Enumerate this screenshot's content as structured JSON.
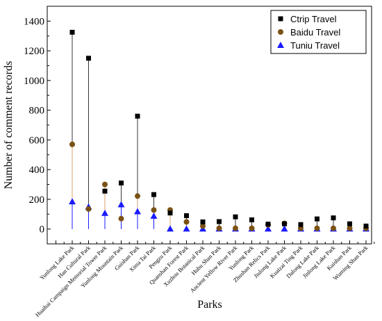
{
  "chart_data": {
    "type": "scatter",
    "xlabel": "Parks",
    "ylabel": "Number of comment records",
    "ylim": [
      -100,
      1500
    ],
    "yticks": [
      0,
      200,
      400,
      600,
      800,
      1000,
      1200,
      1400
    ],
    "grid": false,
    "legend_position": "top-right",
    "categories": [
      "Yunlong Lake Park",
      "Han Cultural Park",
      "Huaihai Campaign Memorial Tower Park",
      "Yunlong Mountain Park",
      "Guishan Park",
      "Xima Tai Park",
      "Pengzu Park",
      "Quanshan Forest Park",
      "Xuzhou Botanical Park",
      "Hubu Shan Park",
      "Ancient Yellow River Park",
      "Yunlong Park",
      "Zhushan Relics Park",
      "Jiulong Lake Park",
      "Kuaizai Ting Park",
      "Dalong Lake Park",
      "Jinlong Lake Park",
      "Kuishan Park",
      "Wuming Shan Park"
    ],
    "series": [
      {
        "name": "Ctrip Travel",
        "marker": "square",
        "color": "#000000",
        "values": [
          1325,
          1150,
          255,
          310,
          760,
          232,
          108,
          90,
          48,
          50,
          82,
          62,
          33,
          35,
          30,
          68,
          75,
          35,
          20
        ]
      },
      {
        "name": "Baidu Travel",
        "marker": "circle",
        "color": "#7a5214",
        "values": [
          570,
          135,
          300,
          70,
          222,
          128,
          128,
          48,
          20,
          5,
          5,
          5,
          28,
          38,
          5,
          5,
          5,
          5,
          5
        ]
      },
      {
        "name": "Tuniu Travel",
        "marker": "triangle",
        "color": "#1a1aff",
        "values": [
          185,
          150,
          107,
          165,
          118,
          88,
          2,
          2,
          2,
          2,
          2,
          2,
          2,
          2,
          2,
          2,
          2,
          2,
          2
        ]
      }
    ]
  }
}
